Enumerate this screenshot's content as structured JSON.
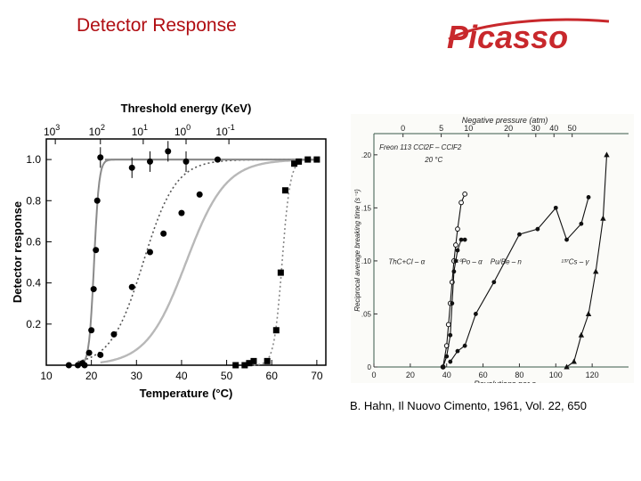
{
  "slide": {
    "title": "Detector Response",
    "logo_text": "Picasso",
    "citation": "B. Hahn, Il Nuovo Cimento, 1961, Vol. 22, 650"
  },
  "colors": {
    "title": "#b00d12",
    "logo": "#c8282c",
    "axis": "#000000",
    "curve_gray": "#a6a6a6"
  },
  "chart_data": [
    {
      "type": "scatter",
      "title": "",
      "xlabel": "Temperature (°C)",
      "ylabel": "Detector response",
      "top_axis_label": "Threshold energy (KeV)",
      "xlim": [
        10,
        72
      ],
      "ylim": [
        0,
        1.1
      ],
      "x_ticks": [
        "10",
        "20",
        "30",
        "40",
        "50",
        "60",
        "70"
      ],
      "y_ticks": [
        "0.2",
        "0.4",
        "0.6",
        "0.8",
        "1.0"
      ],
      "top_ticks": [
        {
          "base": "10",
          "exp": "3",
          "x": 12
        },
        {
          "base": "10",
          "exp": "2",
          "x": 22
        },
        {
          "base": "10",
          "exp": "1",
          "x": 31.5
        },
        {
          "base": "10",
          "exp": "0",
          "x": 41
        },
        {
          "base": "10",
          "exp": "-1",
          "x": 50.5
        }
      ],
      "series": [
        {
          "marker": "circle",
          "line": "solid-gray",
          "points": [
            [
              15,
              0
            ],
            [
              17,
              0
            ],
            [
              18.5,
              0
            ],
            [
              19.5,
              0.06
            ],
            [
              20,
              0.17
            ],
            [
              20.5,
              0.37
            ],
            [
              21,
              0.56
            ],
            [
              21.3,
              0.8
            ],
            [
              22,
              1.01
            ],
            [
              29,
              0.96
            ],
            [
              33,
              0.99
            ],
            [
              37,
              1.04
            ],
            [
              41,
              0.99
            ]
          ]
        },
        {
          "marker": "circle",
          "line": "dotted",
          "points": [
            [
              18,
              0.01
            ],
            [
              22,
              0.05
            ],
            [
              25,
              0.15
            ],
            [
              29,
              0.38
            ],
            [
              33,
              0.55
            ],
            [
              36,
              0.64
            ],
            [
              40,
              0.74
            ],
            [
              44,
              0.83
            ],
            [
              48,
              1.0
            ]
          ]
        },
        {
          "marker": "none",
          "line": "solid-lightgray",
          "points": []
        },
        {
          "marker": "square",
          "line": "dotted",
          "points": [
            [
              52,
              0
            ],
            [
              54,
              0
            ],
            [
              55,
              0.01
            ],
            [
              56,
              0.02
            ],
            [
              59,
              0.02
            ],
            [
              61,
              0.17
            ],
            [
              62,
              0.45
            ],
            [
              63,
              0.85
            ],
            [
              65,
              0.98
            ],
            [
              66,
              0.99
            ],
            [
              68,
              1.0
            ],
            [
              70,
              1.0
            ]
          ]
        }
      ]
    },
    {
      "type": "scatter",
      "title": "",
      "xlabel": "Revolutions per s",
      "ylabel": "Reciprocal average breaking time (s⁻¹)",
      "top_axis_label": "Negative pressure (atm)",
      "note_line1": "Freon 113  CCl2F – CClF2",
      "note_line2": "20 °C",
      "xlim": [
        0,
        140
      ],
      "ylim": [
        0,
        0.22
      ],
      "x_ticks": [
        "0",
        "20",
        "40",
        "60",
        "80",
        "100",
        "120"
      ],
      "y_ticks": [
        "0",
        ".05",
        ".10",
        ".15",
        ".20"
      ],
      "top_ticks": [
        {
          "label": "0",
          "x": 16
        },
        {
          "label": "5",
          "x": 37
        },
        {
          "label": "10",
          "x": 52
        },
        {
          "label": "20",
          "x": 74
        },
        {
          "label": "30",
          "x": 89
        },
        {
          "label": "40",
          "x": 99
        },
        {
          "label": "50",
          "x": 109
        }
      ],
      "annotations": [
        {
          "text": "ThC+Cl – α",
          "x": 8,
          "y": 0.097
        },
        {
          "text": "²¹⁰Po – α",
          "x": 44,
          "y": 0.097
        },
        {
          "text": "Pu/Be – n",
          "x": 64,
          "y": 0.097
        },
        {
          "text": "¹³⁷Cs – γ",
          "x": 103,
          "y": 0.097
        }
      ],
      "series": [
        {
          "name": "ThC+Cl – α",
          "marker": "open-circle",
          "points": [
            [
              38,
              0
            ],
            [
              40,
              0.02
            ],
            [
              41,
              0.04
            ],
            [
              42,
              0.06
            ],
            [
              43,
              0.08
            ],
            [
              44,
              0.1
            ],
            [
              45,
              0.115
            ],
            [
              46,
              0.13
            ],
            [
              48,
              0.155
            ],
            [
              50,
              0.163
            ]
          ]
        },
        {
          "name": "²¹⁰Po – α",
          "marker": "circle",
          "points": [
            [
              38,
              0
            ],
            [
              40,
              0.01
            ],
            [
              42,
              0.03
            ],
            [
              43,
              0.06
            ],
            [
              44,
              0.09
            ],
            [
              45,
              0.1
            ],
            [
              46,
              0.11
            ],
            [
              48,
              0.12
            ],
            [
              50,
              0.12
            ]
          ]
        },
        {
          "name": "Pu/Be – n",
          "marker": "filled-circle",
          "points": [
            [
              42,
              0.005
            ],
            [
              46,
              0.015
            ],
            [
              50,
              0.02
            ],
            [
              56,
              0.05
            ],
            [
              66,
              0.08
            ],
            [
              80,
              0.125
            ],
            [
              90,
              0.13
            ],
            [
              100,
              0.15
            ],
            [
              106,
              0.12
            ],
            [
              114,
              0.135
            ],
            [
              118,
              0.16
            ]
          ]
        },
        {
          "name": "¹³⁷Cs – γ",
          "marker": "triangle",
          "points": [
            [
              106,
              0
            ],
            [
              110,
              0.005
            ],
            [
              114,
              0.03
            ],
            [
              118,
              0.05
            ],
            [
              122,
              0.09
            ],
            [
              126,
              0.14
            ],
            [
              128,
              0.2
            ]
          ]
        }
      ]
    }
  ]
}
